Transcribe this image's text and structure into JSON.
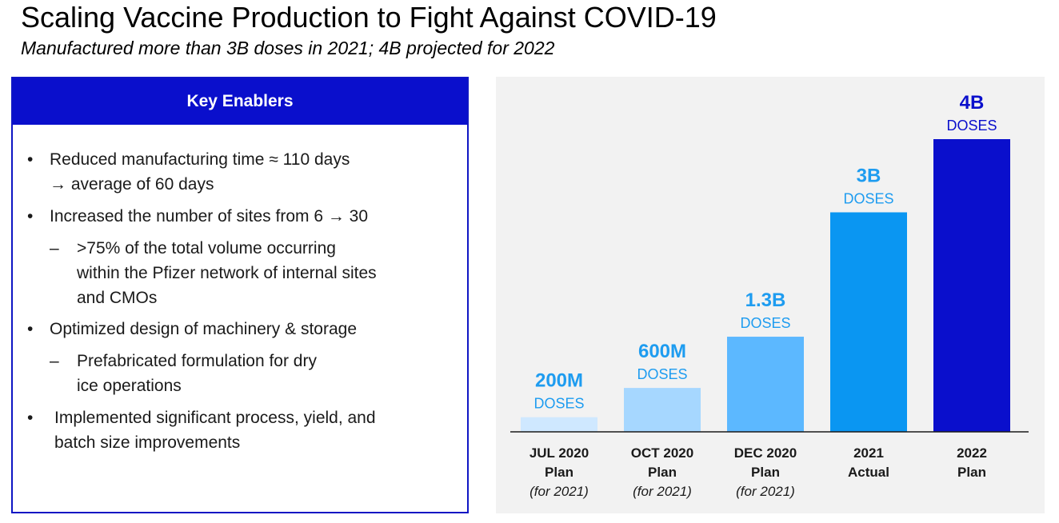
{
  "title": "Scaling Vaccine Production to Fight Against COVID-19",
  "subtitle": "Manufactured more than 3B doses in 2021; 4B projected for 2022",
  "enablers": {
    "header": "Key Enablers",
    "items": [
      {
        "marker": "•",
        "level": 1,
        "lines": [
          "Reduced manufacturing time ≈ 110 days",
          "→ average of 60 days"
        ]
      },
      {
        "marker": "•",
        "level": 1,
        "lines": [
          "Increased the number of sites from 6 → 30"
        ]
      },
      {
        "marker": "–",
        "level": 2,
        "lines": [
          ">75% of the total volume occurring",
          "within the Pfizer network of internal sites",
          "and CMOs"
        ]
      },
      {
        "marker": "•",
        "level": 1,
        "lines": [
          "Optimized design of machinery & storage"
        ]
      },
      {
        "marker": "–",
        "level": 2,
        "lines": [
          "Prefabricated formulation for dry",
          "ice operations"
        ]
      },
      {
        "marker": "•",
        "level": 1,
        "lines": [
          "Implemented significant process, yield, and",
          "batch size improvements"
        ]
      }
    ]
  },
  "chart_data": {
    "type": "bar",
    "title": "",
    "xlabel": "",
    "ylabel": "",
    "unit": "DOSES",
    "value_units": "doses (millions)",
    "ylim": [
      0,
      4000
    ],
    "grid": false,
    "categories": [
      {
        "lines": [
          "JUL 2020",
          "Plan"
        ],
        "note": "(for 2021)"
      },
      {
        "lines": [
          "OCT 2020",
          "Plan"
        ],
        "note": "(for 2021)"
      },
      {
        "lines": [
          "DEC 2020",
          "Plan"
        ],
        "note": "(for 2021)"
      },
      {
        "lines": [
          "2021",
          "Actual"
        ],
        "note": ""
      },
      {
        "lines": [
          "2022",
          "Plan"
        ],
        "note": ""
      }
    ],
    "values": [
      200,
      600,
      1300,
      3000,
      4000
    ],
    "value_labels": [
      "200M",
      "600M",
      "1.3B",
      "3B",
      "4B"
    ],
    "bar_colors": [
      "#cfe8ff",
      "#a6d7ff",
      "#5cb8ff",
      "#0a96f2",
      "#0a0fcc"
    ],
    "label_colors": [
      "#1e9cf0",
      "#1e9cf0",
      "#1e9cf0",
      "#1e9cf0",
      "#0a0fcc"
    ],
    "category_colors": [
      "#1a1a1a",
      "#1a1a1a",
      "#1a1a1a",
      "#1a1a1a",
      "#0a0fcc"
    ]
  }
}
